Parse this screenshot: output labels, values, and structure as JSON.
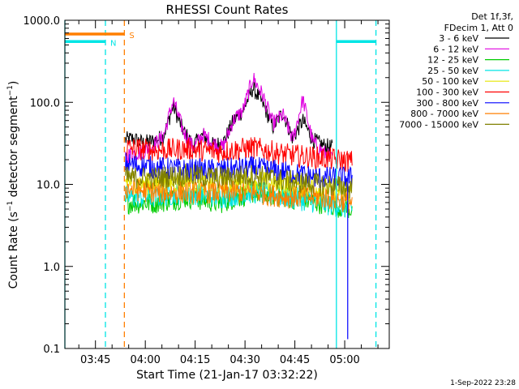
{
  "chart_data": {
    "type": "line",
    "title": "RHESSI Count Rates",
    "xlabel": "Start Time (21-Jan-17 03:32:22)",
    "ylabel": "Count Rate (s^-1 detector segment^-1)",
    "ylabel_parts": {
      "base": "Count Rate (s",
      "exp1": "−1",
      "mid": " detector segment",
      "exp2": "−1",
      "end": ")"
    },
    "yscale": "log",
    "ylim": [
      0.1,
      1000
    ],
    "xlim_minutes": [
      3.4,
      101
    ],
    "x_unit": "minutes after 03:32:22",
    "x_ticks": [
      {
        "label": "03:45",
        "value": 12.6
      },
      {
        "label": "04:00",
        "value": 27.6
      },
      {
        "label": "04:15",
        "value": 42.6
      },
      {
        "label": "04:30",
        "value": 57.6
      },
      {
        "label": "04:45",
        "value": 72.6
      },
      {
        "label": "05:00",
        "value": 87.6
      }
    ],
    "y_ticks": [
      {
        "label": "0.1",
        "value": 0.1
      },
      {
        "label": "1.0",
        "value": 1
      },
      {
        "label": "10.0",
        "value": 10
      },
      {
        "label": "100.0",
        "value": 100
      },
      {
        "label": "1000.0",
        "value": 1000
      }
    ],
    "legend_header": [
      "Det 1f,3f,",
      "FDecim 1, Att 0"
    ],
    "legend_placement": "top-right outside plot",
    "footer_date": "1-Sep-2022 23:28",
    "markers": [
      {
        "label": "N",
        "color": "#00e5e5",
        "bar_x": [
          3.4,
          15.6
        ],
        "bar_y": 550,
        "lines": [
          {
            "x": 3.4,
            "dashed": false
          },
          {
            "x": 15.6,
            "dashed": true
          }
        ]
      },
      {
        "label": "S",
        "color": "#ff7f00",
        "bar_x": [
          3.4,
          21.3
        ],
        "bar_y": 680,
        "lines": [
          {
            "x": 21.3,
            "dashed": true
          }
        ]
      },
      {
        "label": "",
        "color": "#00e5e5",
        "bar_x": [
          85.1,
          97.0
        ],
        "bar_y": 550,
        "lines": [
          {
            "x": 85.1,
            "dashed": false
          },
          {
            "x": 97.0,
            "dashed": true
          }
        ]
      }
    ],
    "series": [
      {
        "name": "3 - 6 keV",
        "color": "#000000",
        "x": [
          21.6,
          24,
          27,
          30,
          33,
          36,
          39,
          42,
          45,
          48,
          51,
          54,
          57,
          60,
          63,
          66,
          69,
          72,
          75,
          78,
          81,
          84
        ],
        "values": [
          35,
          36,
          32,
          34,
          38,
          90,
          45,
          30,
          40,
          30,
          32,
          58,
          80,
          150,
          95,
          50,
          75,
          36,
          60,
          35,
          30,
          28
        ]
      },
      {
        "name": "6 - 12 keV",
        "color": "#e000e0",
        "x": [
          21.6,
          24,
          27,
          30,
          33,
          36,
          39,
          42,
          45,
          48,
          51,
          54,
          57,
          60,
          63,
          66,
          69,
          72,
          75,
          78,
          81,
          84
        ],
        "values": [
          22,
          24,
          25,
          30,
          38,
          105,
          45,
          28,
          40,
          32,
          28,
          60,
          80,
          200,
          120,
          55,
          70,
          35,
          110,
          33,
          25,
          20
        ]
      },
      {
        "name": "12 - 25 keV",
        "color": "#00cc00",
        "x": [
          21.6,
          30,
          40,
          50,
          60,
          70,
          80,
          90
        ],
        "values": [
          6,
          6,
          7,
          6,
          8,
          7,
          6,
          5
        ]
      },
      {
        "name": "25 - 50 keV",
        "color": "#00e5e5",
        "x": [
          21.6,
          30,
          40,
          50,
          60,
          70,
          80,
          90
        ],
        "values": [
          7,
          7,
          8,
          7,
          8,
          7,
          6,
          5
        ]
      },
      {
        "name": "50 - 100 keV",
        "color": "#e5e500",
        "x": [
          21.6,
          30,
          40,
          50,
          60,
          70,
          80,
          90
        ],
        "values": [
          11,
          10,
          11,
          10,
          11,
          10,
          9,
          8
        ]
      },
      {
        "name": "100 - 300 keV",
        "color": "#ff0000",
        "x": [
          21.6,
          30,
          40,
          50,
          60,
          70,
          80,
          90
        ],
        "values": [
          28,
          26,
          27,
          25,
          28,
          23,
          21,
          19
        ]
      },
      {
        "name": "300 - 800 keV",
        "color": "#0000ff",
        "x": [
          21.6,
          30,
          40,
          50,
          60,
          70,
          80,
          90
        ],
        "values": [
          18,
          16,
          15,
          15,
          16,
          14,
          12,
          12
        ]
      },
      {
        "name": "800 - 7000 keV",
        "color": "#ff7f00",
        "x": [
          21.6,
          30,
          40,
          50,
          60,
          70,
          80,
          90
        ],
        "values": [
          9,
          8,
          8,
          8,
          8,
          7,
          7,
          6
        ]
      },
      {
        "name": "7000 - 15000 keV",
        "color": "#808000",
        "x": [
          21.6,
          30,
          40,
          50,
          60,
          70,
          80,
          90
        ],
        "values": [
          12,
          12,
          13,
          12,
          13,
          11,
          10,
          9
        ]
      }
    ]
  }
}
